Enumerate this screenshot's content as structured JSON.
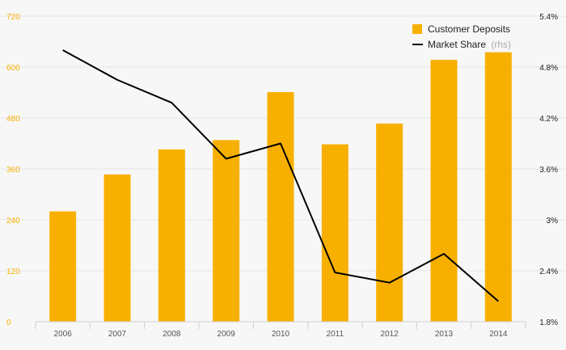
{
  "chart_data": {
    "type": "bar",
    "categories": [
      "2006",
      "2007",
      "2008",
      "2009",
      "2010",
      "2011",
      "2012",
      "2013",
      "2014"
    ],
    "series": [
      {
        "name": "Customer Deposits",
        "type": "bar",
        "axis": "left",
        "color": "#f8b000",
        "values": [
          260,
          347,
          406,
          428,
          541,
          418,
          467,
          617,
          635
        ]
      },
      {
        "name": "Market Share",
        "legend_suffix": "(rhs)",
        "type": "line",
        "axis": "right",
        "color": "#000000",
        "values": [
          5.0,
          4.65,
          4.38,
          3.72,
          3.9,
          2.38,
          2.26,
          2.6,
          2.04
        ]
      }
    ],
    "left_axis": {
      "ticks": [
        "0",
        "120",
        "240",
        "360",
        "480",
        "600",
        "720"
      ],
      "range": [
        0,
        720
      ],
      "tick_color": "#f8b000"
    },
    "right_axis": {
      "ticks": [
        "1.8%",
        "2.4%",
        "3%",
        "3.6%",
        "4.2%",
        "4.8%",
        "5.4%"
      ],
      "range": [
        1.8,
        5.4
      ]
    },
    "grid": true,
    "legend_position": "top-right"
  }
}
